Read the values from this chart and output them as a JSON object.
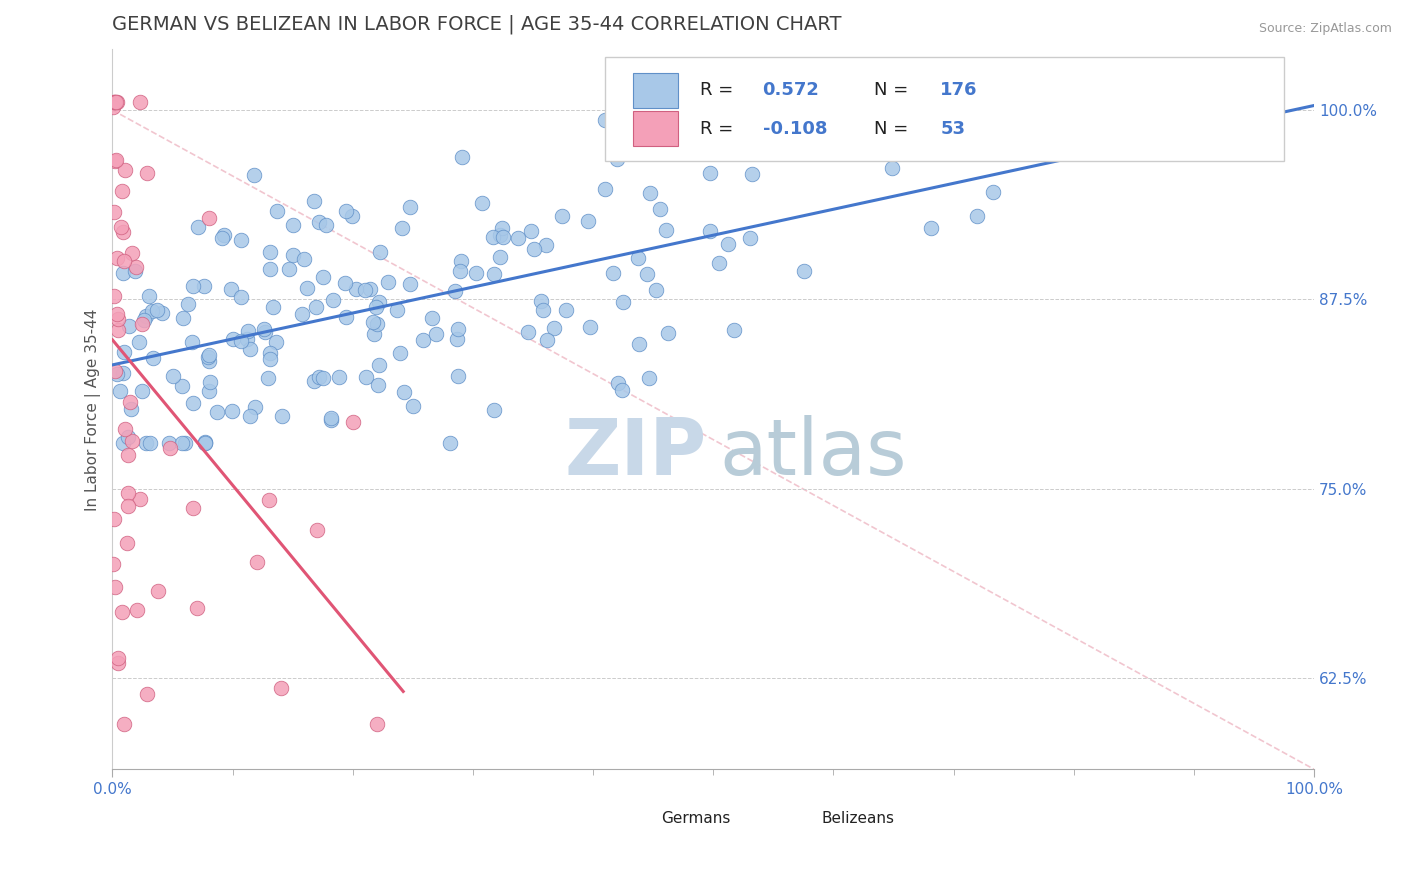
{
  "title": "GERMAN VS BELIZEAN IN LABOR FORCE | AGE 35-44 CORRELATION CHART",
  "source_text": "Source: ZipAtlas.com",
  "ylabel": "In Labor Force | Age 35-44",
  "xlim": [
    0.0,
    1.0
  ],
  "ylim": [
    0.565,
    1.04
  ],
  "yticks": [
    0.625,
    0.75,
    0.875,
    1.0
  ],
  "ytick_labels": [
    "62.5%",
    "75.0%",
    "87.5%",
    "100.0%"
  ],
  "xtick_labels": [
    "0.0%",
    "100.0%"
  ],
  "german_R": 0.572,
  "german_N": 176,
  "belizean_R": -0.108,
  "belizean_N": 53,
  "german_color": "#a8c8e8",
  "belizean_color": "#f4a0b8",
  "german_edge_color": "#6090c8",
  "belizean_edge_color": "#d06080",
  "german_line_color": "#4477cc",
  "belizean_line_color": "#e05575",
  "refline_color": "#e8a0b0",
  "title_color": "#404040",
  "axis_value_color": "#4477cc",
  "title_fontsize": 14,
  "axis_label_fontsize": 11,
  "tick_fontsize": 11,
  "legend_fontsize": 13,
  "background_color": "#ffffff",
  "watermark_zip_color": "#c8d8e8",
  "watermark_atlas_color": "#b8ccd8"
}
